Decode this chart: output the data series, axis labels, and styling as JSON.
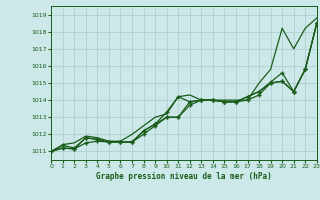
{
  "xlabel": "Graphe pression niveau de la mer (hPa)",
  "xlim": [
    0,
    23
  ],
  "ylim": [
    1010.5,
    1019.5
  ],
  "yticks": [
    1011,
    1012,
    1013,
    1014,
    1015,
    1016,
    1017,
    1018,
    1019
  ],
  "xticks": [
    0,
    1,
    2,
    3,
    4,
    5,
    6,
    7,
    8,
    9,
    10,
    11,
    12,
    13,
    14,
    15,
    16,
    17,
    18,
    19,
    20,
    21,
    22,
    23
  ],
  "bg_color": "#cce8e8",
  "grid_color": "#aacccc",
  "line_color": "#1a5c1a",
  "series": [
    {
      "data": [
        1011.0,
        1011.4,
        1011.5,
        1011.9,
        1011.8,
        1011.6,
        1011.6,
        1012.0,
        1012.5,
        1013.0,
        1013.2,
        1014.2,
        1014.3,
        1014.0,
        1014.0,
        1014.0,
        1014.0,
        1014.0,
        1015.0,
        1015.8,
        1018.2,
        1017.0,
        1018.2,
        1018.8
      ],
      "marker": false,
      "lw": 0.9
    },
    {
      "data": [
        1011.0,
        1011.35,
        1011.2,
        1011.8,
        1011.7,
        1011.55,
        1011.55,
        1011.55,
        1012.2,
        1012.6,
        1013.3,
        1014.2,
        1013.9,
        1014.0,
        1014.0,
        1013.9,
        1013.9,
        1014.2,
        1014.5,
        1015.05,
        1015.6,
        1014.5,
        1015.8,
        1018.5
      ],
      "marker": true,
      "lw": 0.9
    },
    {
      "data": [
        1011.0,
        1011.2,
        1011.15,
        1011.8,
        1011.7,
        1011.55,
        1011.55,
        1011.55,
        1012.2,
        1012.6,
        1013.0,
        1013.0,
        1013.9,
        1014.0,
        1014.0,
        1013.9,
        1013.9,
        1014.2,
        1014.5,
        1015.0,
        1015.1,
        1014.5,
        1015.8,
        1018.5
      ],
      "marker": true,
      "lw": 0.9
    },
    {
      "data": [
        1011.0,
        1011.2,
        1011.15,
        1011.5,
        1011.6,
        1011.55,
        1011.55,
        1011.55,
        1012.0,
        1012.5,
        1013.0,
        1013.0,
        1013.7,
        1014.0,
        1014.0,
        1013.9,
        1013.9,
        1014.0,
        1014.3,
        1015.0,
        1015.1,
        1014.5,
        1015.8,
        1018.5
      ],
      "marker": true,
      "lw": 0.9
    }
  ]
}
